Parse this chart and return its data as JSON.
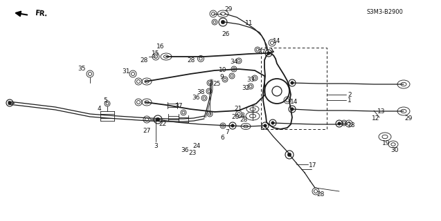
{
  "bg_color": "#ffffff",
  "fg_color": "#1a1a1a",
  "model_code": "S3M3-B2900",
  "arrow_label": "FR.",
  "figsize": [
    6.37,
    3.2
  ],
  "dpi": 100
}
